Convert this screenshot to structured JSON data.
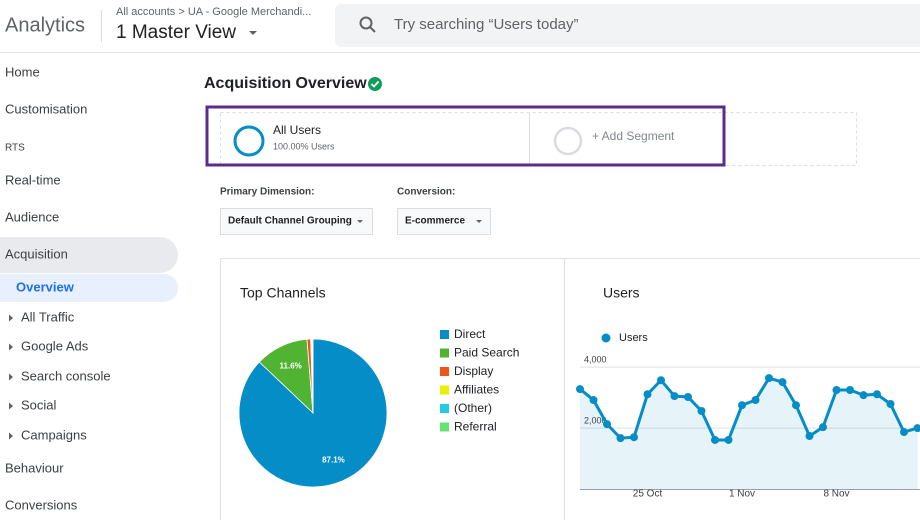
{
  "header": {
    "app": "Analytics",
    "breadcrumb": "All accounts > UA - Google Merchandi...",
    "view": "1 Master View",
    "search_placeholder": "Try searching “Users today”"
  },
  "sidebar": {
    "items": [
      "Home",
      "Customisation",
      "RTS",
      "Real-time",
      "Audience",
      "Acquisition",
      "Overview",
      "All Traffic",
      "Google Ads",
      "Search console",
      "Social",
      "Campaigns",
      "Behaviour",
      "Conversions"
    ]
  },
  "main": {
    "title": "Acquisition Overview",
    "segment": {
      "name": "All Users",
      "detail": "100.00% Users"
    },
    "add_segment": "+ Add Segment",
    "primary_dimension": {
      "label": "Primary Dimension:",
      "value": "Default Channel Grouping"
    },
    "conversion": {
      "label": "Conversion:",
      "value": "E-commerce"
    }
  },
  "chart_data": [
    {
      "type": "pie",
      "title": "Top Channels",
      "categories": [
        "Direct",
        "Paid Search",
        "Display",
        "Affiliates",
        "(Other)",
        "Referral"
      ],
      "values": [
        87.1,
        11.6,
        0.8,
        0.2,
        0.2,
        0.1
      ],
      "value_labels": [
        "87.1%",
        "11.6%",
        null,
        null,
        null,
        null
      ],
      "colors": [
        "#058dc7",
        "#50b432",
        "#ed561b",
        "#edef00",
        "#24cbe5",
        "#64e572"
      ]
    },
    {
      "type": "line",
      "title": "Users",
      "categories": [
        null,
        null,
        null,
        null,
        null,
        "25 Oct",
        null,
        null,
        null,
        null,
        null,
        null,
        "1 Nov",
        null,
        null,
        null,
        null,
        null,
        null,
        "8 Nov",
        null,
        null,
        null,
        null,
        null,
        null
      ],
      "series": [
        {
          "name": "Users",
          "color": "#058dc7",
          "values": [
            3280,
            2920,
            2130,
            1670,
            1700,
            3110,
            3570,
            3050,
            3020,
            2560,
            1610,
            1610,
            2750,
            2920,
            3640,
            3510,
            2750,
            1740,
            2030,
            3250,
            3250,
            3080,
            3110,
            2790,
            1870,
            2000
          ]
        }
      ],
      "ylim": [
        0,
        4300
      ],
      "yticks": [
        {
          "value": 2000,
          "label": "2,000"
        },
        {
          "value": 4000,
          "label": "4,000"
        }
      ],
      "grid": true
    }
  ]
}
